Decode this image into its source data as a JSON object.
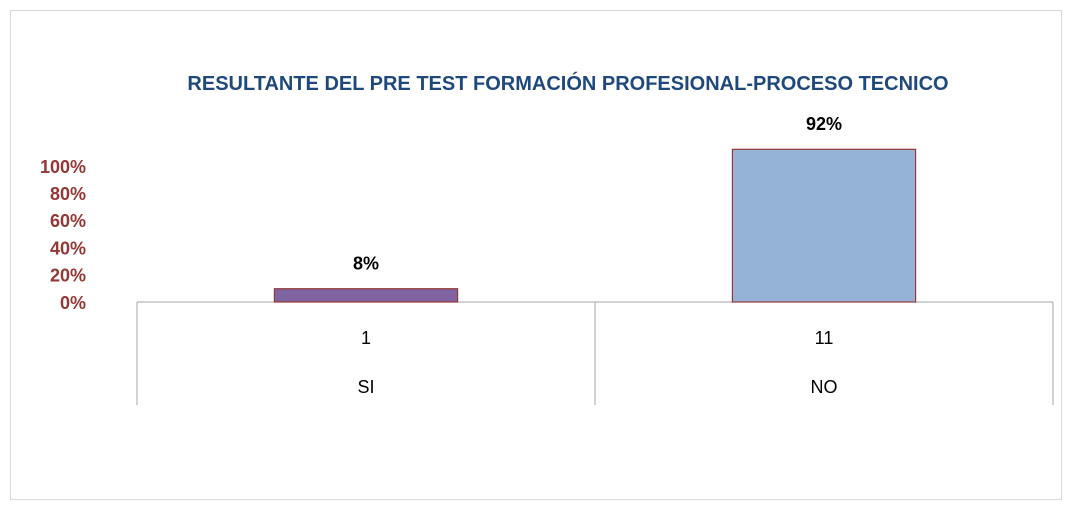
{
  "chart_data": {
    "type": "bar",
    "title": "RESULTANTE DEL PRE TEST FORMACIÓN PROFESIONAL-PROCESO TECNICO",
    "categories": [
      "SI",
      "NO"
    ],
    "subcategories": [
      "1",
      "11"
    ],
    "values": [
      8,
      92
    ],
    "value_labels": [
      "8%",
      "92%"
    ],
    "colors": [
      "#8064a2",
      "#95b3d7"
    ],
    "edge_color": "#953735",
    "ylim": [
      0,
      100
    ],
    "yticks": [
      {
        "value": 0,
        "label": "0%"
      },
      {
        "value": 20,
        "label": "20%"
      },
      {
        "value": 40,
        "label": "40%"
      },
      {
        "value": 60,
        "label": "60%"
      },
      {
        "value": 80,
        "label": "80%"
      },
      {
        "value": 100,
        "label": "100%"
      }
    ],
    "grid": false
  }
}
